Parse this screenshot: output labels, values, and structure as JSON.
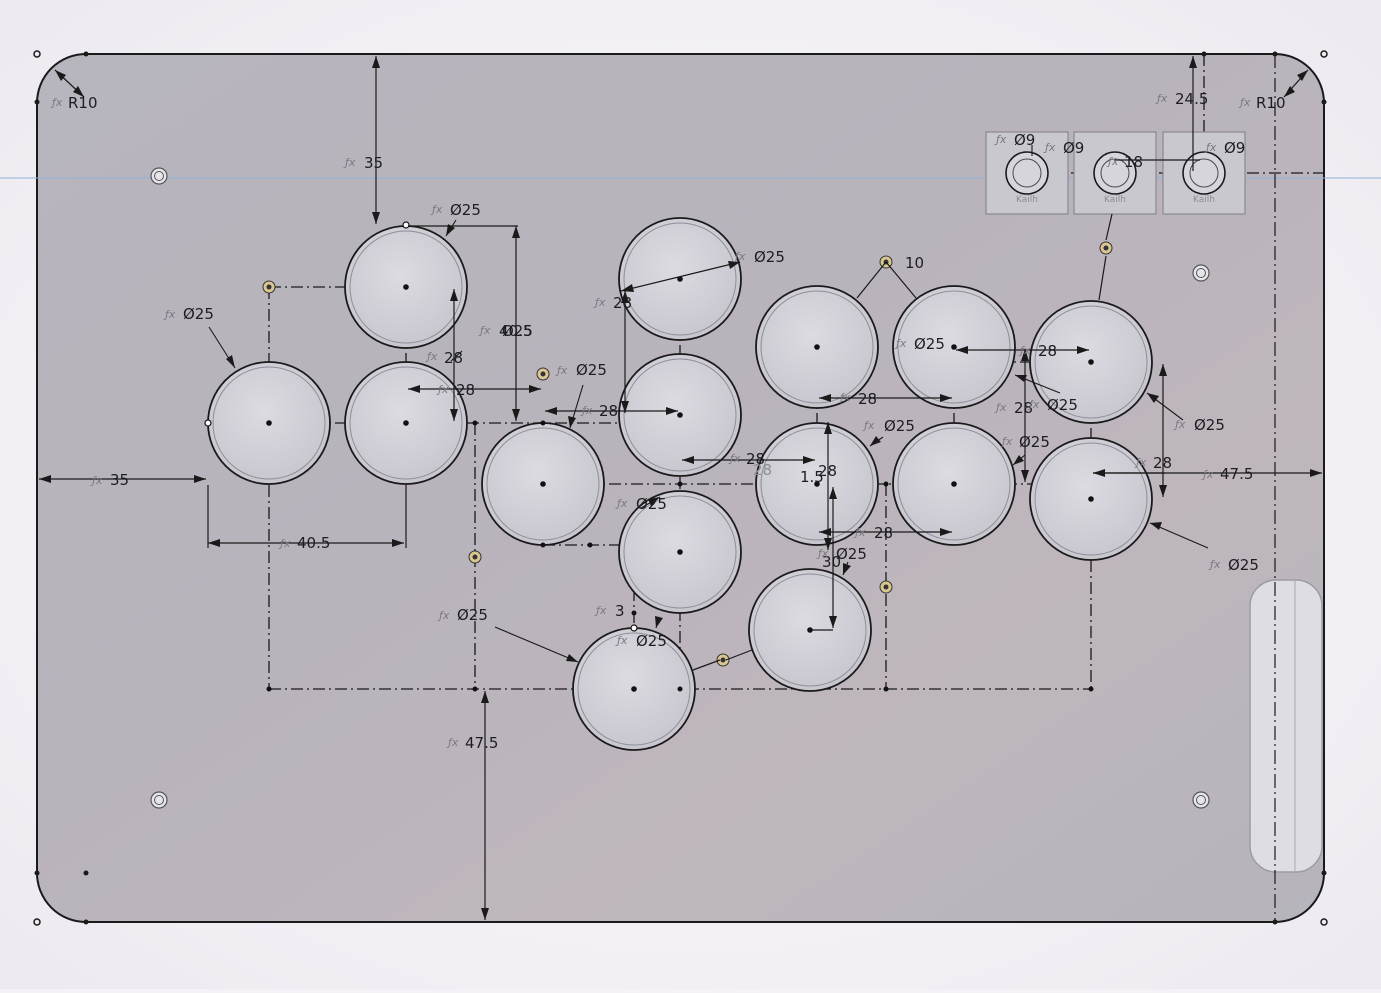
{
  "sketch": {
    "fx_symbol": "ƒx",
    "switch_label": "Kailh",
    "corner_radius_label": "R10",
    "dimensions": {
      "left_margin": "35",
      "top_offset": "35",
      "thumb_spacing": "40.5",
      "bottom_offset": "47.5",
      "right_offset": "47.5",
      "switch_offset": "24.5",
      "button_spacing": "28",
      "angle_offset": "10",
      "small_offset": "3",
      "vertical_offset": "30",
      "switch_spacing": "18",
      "small_gap": "1.5"
    },
    "diameters": {
      "button": "Ø25",
      "switch": "Ø9",
      "overlap": "40.5",
      "overlap2": "Ø25"
    },
    "colors": {
      "plate_fill": "#b8b6bf",
      "plate_stroke": "#1a1a1a",
      "button_fill": "#d3d2da",
      "construction": "#1a1a1a",
      "horizon_line": "#8fb3d6"
    }
  }
}
